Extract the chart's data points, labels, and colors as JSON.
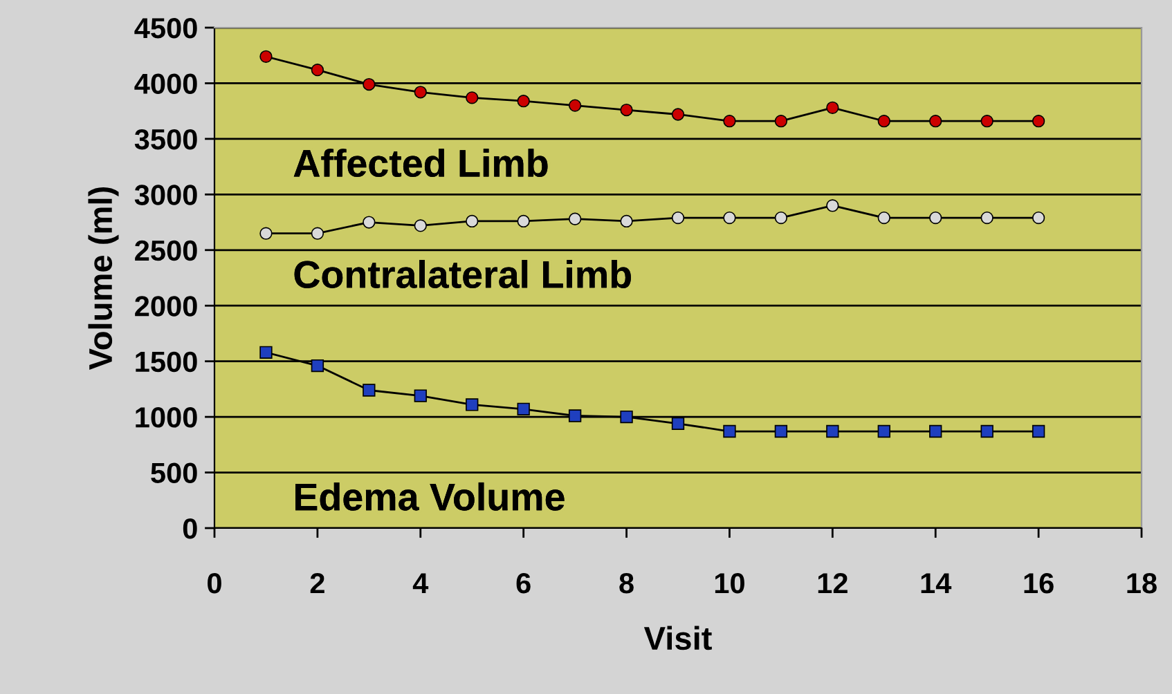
{
  "chart_data": {
    "type": "line",
    "xlabel": "Visit",
    "ylabel": "Volume (ml)",
    "x": [
      1,
      2,
      3,
      4,
      5,
      6,
      7,
      8,
      9,
      10,
      11,
      12,
      13,
      14,
      15,
      16
    ],
    "series": [
      {
        "name": "Affected Limb",
        "color": "#cc0000",
        "marker": "circle",
        "values": [
          4240,
          4120,
          3990,
          3920,
          3870,
          3840,
          3800,
          3760,
          3720,
          3660,
          3660,
          3780,
          3660,
          3660,
          3660,
          3660
        ]
      },
      {
        "name": "Contralateral Limb",
        "color": "#d9d9d9",
        "marker": "circle",
        "values": [
          2650,
          2650,
          2750,
          2720,
          2760,
          2760,
          2780,
          2760,
          2790,
          2790,
          2790,
          2900,
          2790,
          2790,
          2790,
          2790
        ]
      },
      {
        "name": "Edema Volume",
        "color": "#1f3fbf",
        "marker": "square",
        "values": [
          1580,
          1460,
          1240,
          1190,
          1110,
          1070,
          1010,
          1000,
          940,
          870,
          870,
          870,
          870,
          870,
          870,
          870
        ]
      }
    ],
    "legend": false,
    "xlim": [
      0,
      18
    ],
    "xticks": [
      0,
      2,
      4,
      6,
      8,
      10,
      12,
      14,
      16,
      18
    ],
    "ylim": [
      0,
      4500
    ],
    "yticks": [
      0,
      500,
      1000,
      1500,
      2000,
      2500,
      3000,
      3500,
      4000,
      4500
    ],
    "grid": "y"
  }
}
